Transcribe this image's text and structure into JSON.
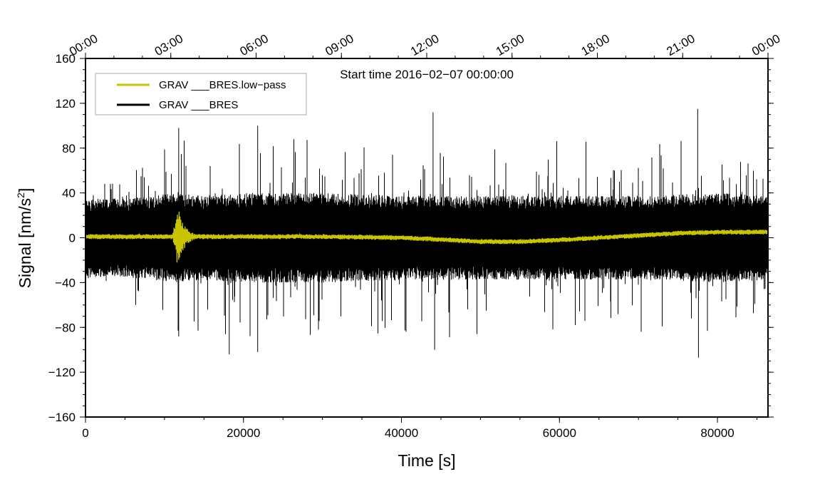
{
  "chart_data": {
    "type": "line",
    "annotation": "Start time 2016−02−07 00:00:00",
    "xlabel": "Time [s]",
    "ylabel_main": "Signal [nm/s",
    "ylabel_sup": "2",
    "ylabel_close": "]",
    "xlim": [
      0,
      86400
    ],
    "ylim": [
      -160,
      160
    ],
    "x_ticks": [
      {
        "value": 0,
        "label": "0"
      },
      {
        "value": 20000,
        "label": "20000"
      },
      {
        "value": 40000,
        "label": "40000"
      },
      {
        "value": 60000,
        "label": "60000"
      },
      {
        "value": 80000,
        "label": "80000"
      }
    ],
    "y_ticks": [
      {
        "value": 160,
        "label": "160"
      },
      {
        "value": 120,
        "label": "120"
      },
      {
        "value": 80,
        "label": "80"
      },
      {
        "value": 40,
        "label": "40"
      },
      {
        "value": 0,
        "label": "0"
      },
      {
        "value": -40,
        "label": "−40"
      },
      {
        "value": -80,
        "label": "−80"
      },
      {
        "value": -120,
        "label": "−120"
      },
      {
        "value": -160,
        "label": "−160"
      }
    ],
    "top_time_ticks": [
      {
        "value": 0,
        "label": "00:00"
      },
      {
        "value": 10800,
        "label": "03:00"
      },
      {
        "value": 21600,
        "label": "06:00"
      },
      {
        "value": 32400,
        "label": "09:00"
      },
      {
        "value": 43200,
        "label": "12:00"
      },
      {
        "value": 54000,
        "label": "15:00"
      },
      {
        "value": 64800,
        "label": "18:00"
      },
      {
        "value": 75600,
        "label": "21:00"
      },
      {
        "value": 86400,
        "label": "00:00"
      }
    ],
    "legend": {
      "placement": "top-left",
      "entries": [
        {
          "name": "GRAV ___BRES.low−pass",
          "color": "#c8c400"
        },
        {
          "name": "GRAV ___BRES",
          "color": "#000000"
        }
      ]
    },
    "series": [
      {
        "name": "GRAV ___BRES",
        "color": "#000000",
        "envelope": {
          "x": [
            0,
            5000,
            11500,
            15000,
            20000,
            30000,
            40000,
            50000,
            60000,
            70000,
            80000,
            86400
          ],
          "max": [
            60,
            55,
            98,
            75,
            90,
            90,
            90,
            90,
            88,
            85,
            90,
            80
          ],
          "min": [
            -55,
            -60,
            -88,
            -85,
            -100,
            -95,
            -90,
            -90,
            -85,
            -85,
            -95,
            -65
          ],
          "core": [
            28,
            28,
            32,
            30,
            32,
            32,
            30,
            30,
            30,
            30,
            32,
            30
          ]
        },
        "spikes": [
          {
            "x": 11800,
            "y": 98
          },
          {
            "x": 11800,
            "y": -88
          },
          {
            "x": 18200,
            "y": -104
          },
          {
            "x": 21800,
            "y": 100
          },
          {
            "x": 21800,
            "y": -102
          },
          {
            "x": 44000,
            "y": 112
          },
          {
            "x": 44200,
            "y": -100
          },
          {
            "x": 77500,
            "y": 115
          },
          {
            "x": 77600,
            "y": -107
          }
        ]
      },
      {
        "name": "GRAV ___BRES.low−pass",
        "color": "#c8c400",
        "trend": {
          "x": [
            0,
            10000,
            20000,
            30000,
            40000,
            45000,
            50000,
            55000,
            60000,
            65000,
            70000,
            75000,
            80000,
            86400
          ],
          "y": [
            1,
            1,
            1,
            1,
            0,
            -1.5,
            -3.5,
            -3.5,
            -2,
            0,
            2,
            4,
            5,
            5
          ]
        },
        "noise_amplitude": 2.2,
        "burst": {
          "start": 11000,
          "peak": 11700,
          "end": 15500,
          "peak_amplitude": 28
        }
      }
    ]
  }
}
